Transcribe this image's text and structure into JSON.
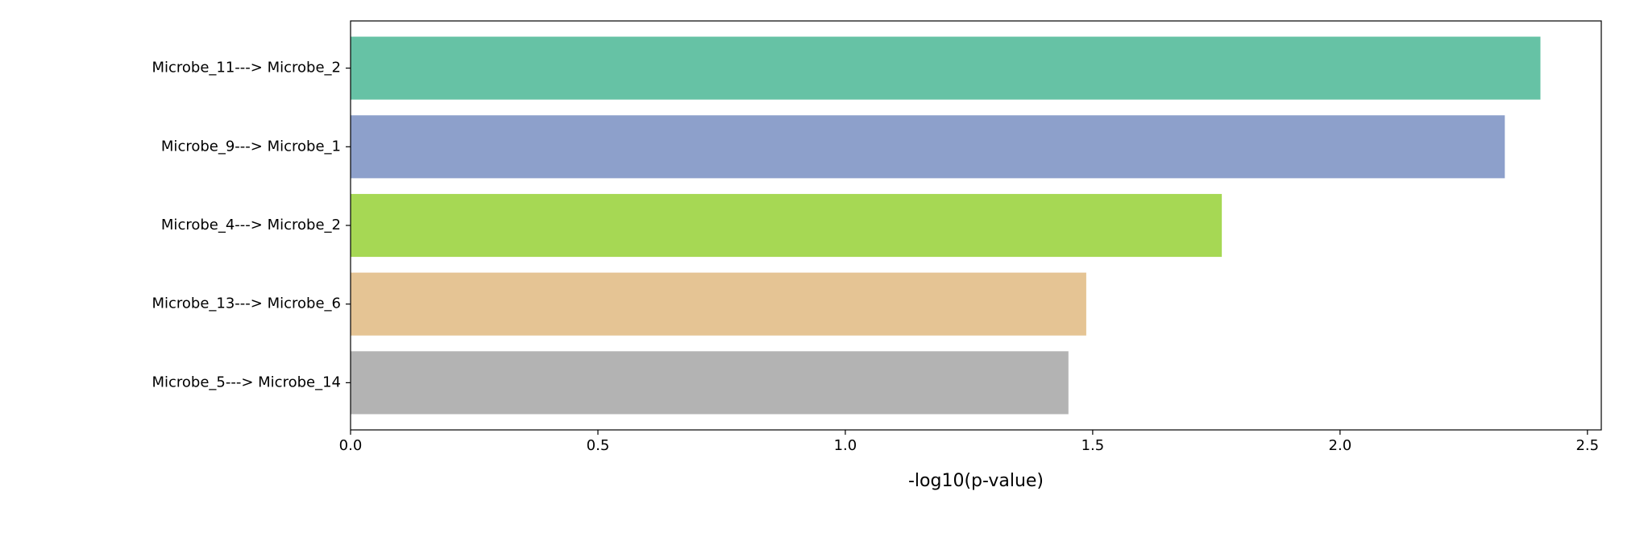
{
  "chart_data": {
    "type": "barh",
    "xlabel": "-log10(p-value)",
    "categories": [
      "Microbe_11---> Microbe_2",
      "Microbe_9---> Microbe_1",
      "Microbe_4---> Microbe_2",
      "Microbe_13---> Microbe_6",
      "Microbe_5---> Microbe_14"
    ],
    "values": [
      2.405,
      2.333,
      1.761,
      1.487,
      1.451
    ],
    "colors": [
      "#66c2a5",
      "#8da0cb",
      "#a6d854",
      "#e5c494",
      "#b3b3b3"
    ],
    "xlim": [
      0,
      2.528
    ],
    "xticks": [
      {
        "value": 0,
        "label": "0.0"
      },
      {
        "value": 0.5,
        "label": "0.5"
      },
      {
        "value": 1,
        "label": "1.0"
      },
      {
        "value": 1.5,
        "label": "1.5"
      },
      {
        "value": 2,
        "label": "2.0"
      },
      {
        "value": 2.5,
        "label": "2.5"
      }
    ],
    "grid": false
  }
}
